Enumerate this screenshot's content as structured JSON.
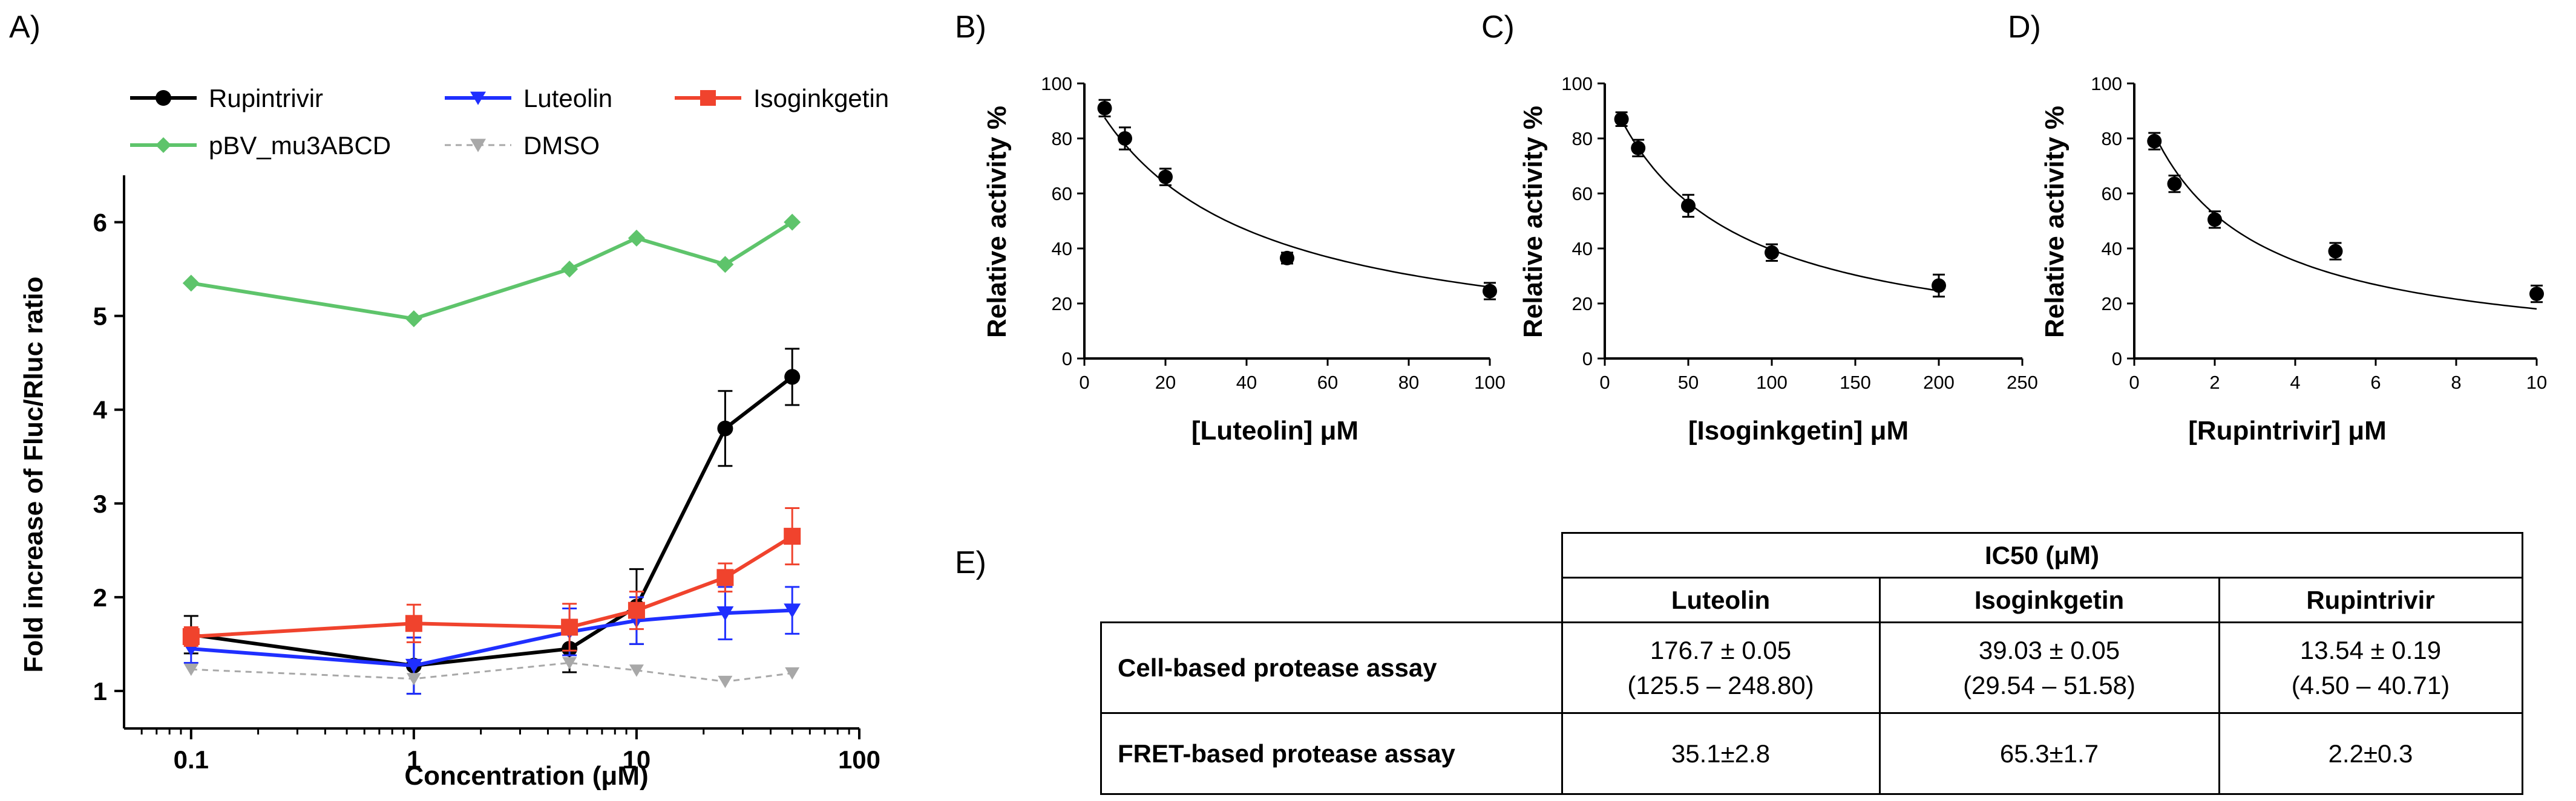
{
  "panel_labels": {
    "a": "A)",
    "b": "B)",
    "c": "C)",
    "d": "D)",
    "e": "E)"
  },
  "chart_data": [
    {
      "type": "line",
      "panel": "A)",
      "xlabel": "Concentration (μM)",
      "ylabel": "Fold increase of Fluc/Rluc ratio",
      "xscale": "log",
      "xlim": [
        0.05,
        100
      ],
      "ylim": [
        0.6,
        6.5
      ],
      "xticks": [
        0.1,
        1,
        10,
        100
      ],
      "xtick_labels": [
        "0.1",
        "1",
        "10",
        "100"
      ],
      "yticks": [
        1,
        2,
        3,
        4,
        5,
        6
      ],
      "ytick_labels": [
        "1",
        "2",
        "3",
        "4",
        "5",
        "6"
      ],
      "legend_placement": "top",
      "grid": false,
      "series": [
        {
          "name": "Rupintrivir",
          "color": "#000000",
          "marker": "circle",
          "dashed": false,
          "x": [
            0.1,
            1,
            5,
            10,
            25,
            50
          ],
          "y": [
            1.6,
            1.27,
            1.45,
            1.9,
            3.8,
            4.35
          ],
          "err": [
            0.2,
            0.3,
            0.25,
            0.4,
            0.4,
            0.3
          ]
        },
        {
          "name": "Luteolin",
          "color": "#1f2fff",
          "marker": "triangle-down",
          "dashed": false,
          "x": [
            0.1,
            1,
            5,
            10,
            25,
            50
          ],
          "y": [
            1.45,
            1.27,
            1.63,
            1.75,
            1.83,
            1.86
          ],
          "err": [
            0.15,
            0.3,
            0.25,
            0.25,
            0.28,
            0.25
          ]
        },
        {
          "name": "Isoginkgetin",
          "color": "#f0432d",
          "marker": "square",
          "dashed": false,
          "x": [
            0.1,
            1,
            5,
            10,
            25,
            50
          ],
          "y": [
            1.58,
            1.72,
            1.68,
            1.86,
            2.21,
            2.65
          ],
          "err": [
            0.1,
            0.2,
            0.25,
            0.2,
            0.15,
            0.3
          ]
        },
        {
          "name": "pBV_mu3ABCD",
          "color": "#5ec46b",
          "marker": "diamond",
          "dashed": false,
          "x": [
            0.1,
            1,
            5,
            10,
            25,
            50
          ],
          "y": [
            5.35,
            4.97,
            5.5,
            5.83,
            5.55,
            6.0
          ],
          "err": [
            0,
            0,
            0,
            0,
            0,
            0
          ]
        },
        {
          "name": "DMSO",
          "color": "#a8a8a8",
          "marker": "triangle-down",
          "dashed": true,
          "x": [
            0.1,
            1,
            5,
            10,
            25,
            50
          ],
          "y": [
            1.23,
            1.13,
            1.3,
            1.22,
            1.1,
            1.19
          ],
          "err": [
            0,
            0,
            0,
            0,
            0,
            0
          ]
        }
      ]
    },
    {
      "type": "scatter",
      "panel": "B)",
      "xlabel": "[Luteolin] μM",
      "ylabel": "Relative activity %",
      "xlim": [
        0,
        100
      ],
      "ylim": [
        0,
        100
      ],
      "xticks": [
        0,
        20,
        40,
        60,
        80,
        100
      ],
      "xtick_labels": [
        "0",
        "20",
        "40",
        "60",
        "80",
        "100"
      ],
      "yticks": [
        0,
        20,
        40,
        60,
        80,
        100
      ],
      "ytick_labels": [
        "0",
        "20",
        "40",
        "60",
        "80",
        "100"
      ],
      "fit": "inhibition curve",
      "fit_ic50": 35.1,
      "points": {
        "x": [
          5,
          10,
          20,
          50,
          100
        ],
        "y": [
          91,
          80,
          66,
          36.5,
          24.5
        ],
        "err": [
          3,
          4,
          3,
          2,
          3
        ]
      }
    },
    {
      "type": "scatter",
      "panel": "C)",
      "xlabel": "[Isoginkgetin] μM",
      "ylabel": "Relative activity %",
      "xlim": [
        0,
        250
      ],
      "ylim": [
        0,
        100
      ],
      "xticks": [
        0,
        50,
        100,
        150,
        200,
        250
      ],
      "xtick_labels": [
        "0",
        "50",
        "100",
        "150",
        "200",
        "250"
      ],
      "yticks": [
        0,
        20,
        40,
        60,
        80,
        100
      ],
      "ytick_labels": [
        "0",
        "20",
        "40",
        "60",
        "80",
        "100"
      ],
      "fit": "inhibition curve",
      "fit_ic50": 65.3,
      "points": {
        "x": [
          10,
          20,
          50,
          100,
          200
        ],
        "y": [
          87,
          76.5,
          55.5,
          38.5,
          26.5
        ],
        "err": [
          2.5,
          3,
          4,
          3,
          4
        ]
      }
    },
    {
      "type": "scatter",
      "panel": "D)",
      "xlabel": "[Rupintrivir] μM",
      "ylabel": "Relative activity %",
      "xlim": [
        0,
        10
      ],
      "ylim": [
        0,
        100
      ],
      "xticks": [
        0,
        2,
        4,
        6,
        8,
        10
      ],
      "xtick_labels": [
        "0",
        "2",
        "4",
        "6",
        "8",
        "10"
      ],
      "yticks": [
        0,
        20,
        40,
        60,
        80,
        100
      ],
      "ytick_labels": [
        "0",
        "20",
        "40",
        "60",
        "80",
        "100"
      ],
      "fit": "inhibition curve",
      "fit_ic50": 2.2,
      "points": {
        "x": [
          0.5,
          1,
          2,
          5,
          10
        ],
        "y": [
          79,
          63.5,
          50.5,
          39,
          23.5
        ],
        "err": [
          3,
          3,
          3,
          3,
          3
        ]
      }
    },
    {
      "type": "table",
      "panel": "E)",
      "header": "IC50 (μM)",
      "columns": [
        "Luteolin",
        "Isoginkgetin",
        "Rupintrivir"
      ],
      "rows": [
        {
          "label": "Cell-based protease assay",
          "cells": [
            [
              "176.7 ± 0.05",
              "(125.5 – 248.80)"
            ],
            [
              "39.03 ± 0.05",
              "(29.54 – 51.58)"
            ],
            [
              "13.54 ± 0.19",
              "(4.50 – 40.71)"
            ]
          ]
        },
        {
          "label": "FRET-based protease assay",
          "cells": [
            [
              "35.1±2.8"
            ],
            [
              "65.3±1.7"
            ],
            [
              "2.2±0.3"
            ]
          ]
        }
      ]
    }
  ]
}
